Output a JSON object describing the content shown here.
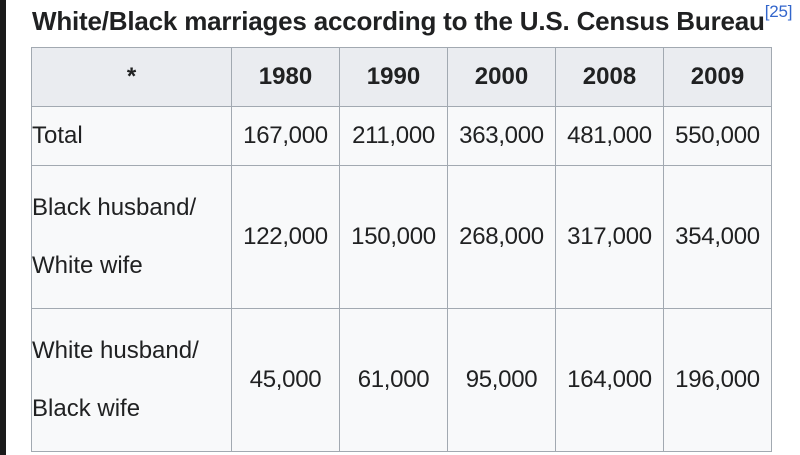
{
  "caption": {
    "title": "White/Black marriages according to the U.S. Census Bureau",
    "reference": "[25]"
  },
  "table": {
    "headers": [
      "*",
      "1980",
      "1990",
      "2000",
      "2008",
      "2009"
    ],
    "rows": [
      {
        "label_line1": "Total",
        "label_line2": "",
        "values": [
          "167,000",
          "211,000",
          "363,000",
          "481,000",
          "550,000"
        ]
      },
      {
        "label_line1": "Black husband/",
        "label_line2": "White wife",
        "values": [
          "122,000",
          "150,000",
          "268,000",
          "317,000",
          "354,000"
        ]
      },
      {
        "label_line1": "White husband/",
        "label_line2": "Black wife",
        "values": [
          "45,000",
          "61,000",
          "95,000",
          "164,000",
          "196,000"
        ]
      }
    ]
  },
  "colors": {
    "header_bg": "#eaecf0",
    "cell_bg": "#f8f9fa",
    "border": "#a2a9b1",
    "text": "#202122",
    "link": "#3366cc"
  }
}
